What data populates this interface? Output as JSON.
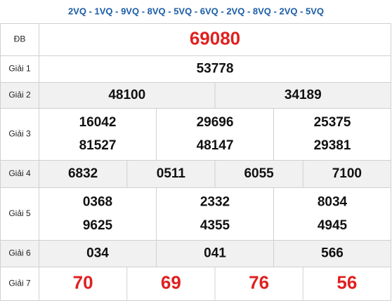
{
  "header": "2VQ - 1VQ - 9VQ - 8VQ - 5VQ - 6VQ - 2VQ - 8VQ - 2VQ - 5VQ",
  "rows": [
    {
      "label": "ĐB",
      "lines": [
        [
          "69080"
        ]
      ]
    },
    {
      "label": "Giải 1",
      "lines": [
        [
          "53778"
        ]
      ]
    },
    {
      "label": "Giải 2",
      "lines": [
        [
          "48100",
          "34189"
        ]
      ]
    },
    {
      "label": "Giải 3",
      "lines": [
        [
          "16042",
          "29696",
          "25375"
        ],
        [
          "81527",
          "48147",
          "29381"
        ]
      ]
    },
    {
      "label": "Giải 4",
      "lines": [
        [
          "6832",
          "0511",
          "6055",
          "7100"
        ]
      ]
    },
    {
      "label": "Giải 5",
      "lines": [
        [
          "0368",
          "2332",
          "8034"
        ],
        [
          "9625",
          "4355",
          "4945"
        ]
      ]
    },
    {
      "label": "Giải 6",
      "lines": [
        [
          "034",
          "041",
          "566"
        ]
      ]
    },
    {
      "label": "Giải 7",
      "lines": [
        [
          "70",
          "69",
          "76",
          "56"
        ]
      ]
    }
  ]
}
